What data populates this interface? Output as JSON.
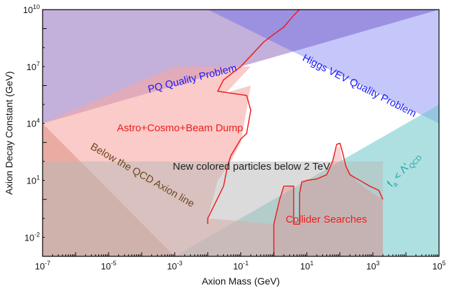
{
  "chart_data": {
    "type": "area",
    "xlabel": "Axion Mass (GeV)",
    "ylabel": "Axion Decay Constant (GeV)",
    "x_scale": "log",
    "y_scale": "log",
    "xlim": [
      1e-07,
      100000.0
    ],
    "ylim": [
      0.001,
      10000000000.0
    ],
    "x_ticks": [
      {
        "value": 1e-07,
        "base": "10",
        "exp": "-7"
      },
      {
        "value": 1e-05,
        "base": "10",
        "exp": "-5"
      },
      {
        "value": 0.001,
        "base": "10",
        "exp": "-3"
      },
      {
        "value": 0.1,
        "base": "10",
        "exp": "-1"
      },
      {
        "value": 10.0,
        "base": "10",
        "exp": "1"
      },
      {
        "value": 1000.0,
        "base": "10",
        "exp": "3"
      },
      {
        "value": 100000.0,
        "base": "10",
        "exp": "5"
      }
    ],
    "y_ticks": [
      {
        "value": 0.01,
        "base": "10",
        "exp": "-2"
      },
      {
        "value": 10.0,
        "base": "10",
        "exp": "1"
      },
      {
        "value": 10000.0,
        "base": "10",
        "exp": "4"
      },
      {
        "value": 10000000.0,
        "base": "10",
        "exp": "7"
      },
      {
        "value": 10000000000.0,
        "base": "10",
        "exp": "10"
      }
    ],
    "regions": [
      {
        "id": "below-qcd-axion-line",
        "label": "Below the QCD Axion line",
        "color": "#a0522d",
        "opacity": 0.45,
        "polygon": [
          [
            1e-07,
            0.001
          ],
          [
            1e-07,
            10000.0
          ],
          [
            0.001,
            0.001
          ]
        ]
      },
      {
        "id": "pq-quality-problem",
        "label": "PQ Quality Problem",
        "color": "#7b4fb0",
        "opacity": 0.45,
        "polygon": [
          [
            1e-07,
            10000000000.0
          ],
          [
            1e-07,
            10000.0
          ],
          [
            100000.0,
            10000000000.0
          ]
        ]
      },
      {
        "id": "higgs-vev-quality-problem",
        "label": "Higgs VEV Quality Problem",
        "color": "#4a52f0",
        "opacity": 0.32,
        "polygon": [
          [
            0.01,
            10000000000.0
          ],
          [
            100000.0,
            10000000000.0
          ],
          [
            100000.0,
            10000.0
          ]
        ]
      },
      {
        "id": "fa-below-lambda-qcd",
        "label_main": "f",
        "label_sub": "a",
        "label_rel": " < Λ'",
        "label_sub2": "QCD",
        "color": "#6cc6c8",
        "opacity": 0.55,
        "polygon": [
          [
            100000.0,
            0.001
          ],
          [
            100000.0,
            100000.0
          ],
          [
            0.001,
            0.001
          ]
        ]
      },
      {
        "id": "astro-cosmo-beam-dump",
        "label": "Astro+Cosmo+Beam Dump",
        "color": "#f7a8a3",
        "opacity": 0.6,
        "polygon": [
          [
            1e-07,
            0.001
          ],
          [
            1e-07,
            10000.0
          ],
          [
            0.001,
            10000000.0
          ],
          [
            0.2,
            10000000.0
          ],
          [
            0.03,
            300000.0
          ],
          [
            0.05,
            500000.0
          ],
          [
            0.2,
            1000000.0
          ],
          [
            0.1,
            1000.0
          ],
          [
            0.05,
            100.0
          ],
          [
            0.02,
            10.0
          ],
          [
            0.01,
            0.1
          ],
          [
            1,
            0.05
          ],
          [
            1,
            0.001
          ]
        ]
      },
      {
        "id": "new-colored-particles",
        "label": "New colored particles below 2 TeV",
        "color": "#b8b8b8",
        "opacity": 0.5,
        "polygon": [
          [
            1e-07,
            0.001
          ],
          [
            1e-07,
            100.0
          ],
          [
            2000.0,
            100.0
          ],
          [
            2000.0,
            0.001
          ]
        ]
      },
      {
        "id": "collider-searches",
        "label": "Collider Searches",
        "color": "#e98585",
        "opacity": 0.35,
        "polygon": [
          [
            1,
            0.001
          ],
          [
            1,
            0.05
          ],
          [
            2,
            4
          ],
          [
            4,
            5
          ],
          [
            4,
            0.05
          ],
          [
            6,
            0.05
          ],
          [
            6,
            4
          ],
          [
            7,
            10
          ],
          [
            15,
            10
          ],
          [
            40,
            20
          ],
          [
            60,
            100
          ],
          [
            80,
            500
          ],
          [
            100,
            600
          ],
          [
            120,
            100
          ],
          [
            300,
            10
          ],
          [
            1000,
            2
          ],
          [
            2000,
            1
          ],
          [
            2000,
            0.001
          ]
        ]
      }
    ],
    "boundary_line": {
      "name": "",
      "color": "#ee1c1c",
      "points": [
        [
          0.01,
          0.05
        ],
        [
          0.01,
          0.1
        ],
        [
          0.03,
          5
        ],
        [
          0.04,
          60
        ],
        [
          0.05,
          200
        ],
        [
          0.1,
          1500
        ],
        [
          0.15,
          3000.0
        ],
        [
          0.2,
          50000.0
        ],
        [
          0.15,
          300000.0
        ],
        [
          0.02,
          500000.0
        ],
        [
          0.03,
          2000000.0
        ],
        [
          0.1,
          10000000.0
        ],
        [
          0.5,
          200000000.0
        ],
        [
          1,
          500000000.0
        ],
        [
          2,
          1200000000.0
        ],
        [
          4,
          5000000000.0
        ],
        [
          6,
          10000000000.0
        ]
      ]
    },
    "collider_line": {
      "name": "",
      "color": "#ee1c1c",
      "points": [
        [
          1,
          0.001
        ],
        [
          1,
          0.05
        ],
        [
          1.5,
          1
        ],
        [
          2,
          5
        ],
        [
          3,
          5
        ],
        [
          4,
          5
        ],
        [
          4,
          0.05
        ],
        [
          6,
          0.05
        ],
        [
          6,
          2
        ],
        [
          7,
          8
        ],
        [
          10,
          10
        ],
        [
          20,
          12
        ],
        [
          40,
          20
        ],
        [
          60,
          100
        ],
        [
          70,
          300
        ],
        [
          80,
          800
        ],
        [
          100,
          900
        ],
        [
          120,
          300
        ],
        [
          150,
          60
        ],
        [
          200,
          20
        ],
        [
          400,
          10
        ],
        [
          800,
          5
        ],
        [
          1500,
          3
        ],
        [
          2000,
          1
        ]
      ]
    }
  }
}
